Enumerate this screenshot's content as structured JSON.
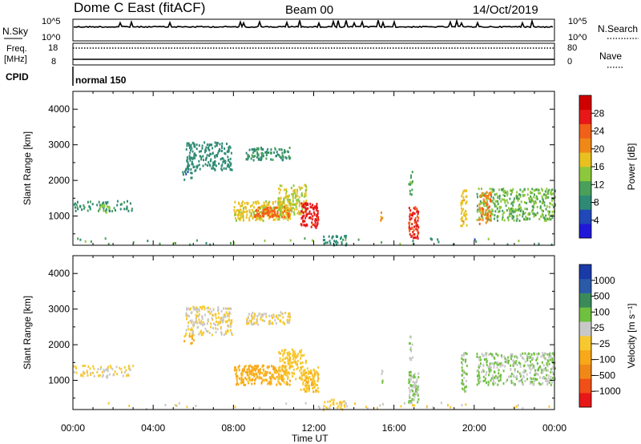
{
  "header": {
    "station": "Dome C East (fitACF)",
    "beam": "Beam 00",
    "date": "14/Oct/2019"
  },
  "panel_labels": {
    "nsky": "N.Sky",
    "nsky_top": "10^5",
    "nsky_bottom": "10^0",
    "nsearch": "N.Search",
    "nsearch_top": "10^5",
    "nsearch_bottom": "10^0",
    "freq": "Freq.",
    "freq_units": "[MHz]",
    "freq_top": "18",
    "freq_bottom": "8",
    "nave": "Nave",
    "nave_top": "80",
    "nave_bottom": "0",
    "cpid": "CPID",
    "cpid_value": "normal 150"
  },
  "chart_data": [
    {
      "type": "heatmap",
      "title": "",
      "xlabel": "Time UT",
      "ylabel": "Slant Range [km]",
      "xticks": [
        "00:00",
        "04:00",
        "08:00",
        "12:00",
        "16:00",
        "20:00",
        "00:00"
      ],
      "yticks": [
        1000,
        2000,
        3000,
        4000
      ],
      "ylim": [
        180,
        4500
      ],
      "xlim_hours": [
        0,
        24
      ],
      "colorbar": {
        "label": "Power [dB]",
        "ticks": [
          "4",
          "8",
          "12",
          "16",
          "20",
          "24",
          "28"
        ],
        "range": [
          0,
          32
        ],
        "colors": [
          "#2018d8",
          "#2048b8",
          "#2e8a74",
          "#4aa05a",
          "#8cc83c",
          "#e8c020",
          "#f08818",
          "#f06018",
          "#e81818",
          "#d00000"
        ]
      },
      "clusters": [
        {
          "t": [
            0.0,
            3.0
          ],
          "r": [
            1150,
            1450
          ],
          "val": 9,
          "density": 0.35
        },
        {
          "t": [
            1.3,
            1.8
          ],
          "r": [
            1100,
            1350
          ],
          "val": 14,
          "density": 0.6
        },
        {
          "t": [
            5.6,
            7.9
          ],
          "r": [
            2300,
            3100
          ],
          "val": 8,
          "density": 0.55
        },
        {
          "t": [
            5.4,
            6.0
          ],
          "r": [
            2050,
            2350
          ],
          "val": 7,
          "density": 0.4
        },
        {
          "t": [
            8.6,
            10.8
          ],
          "r": [
            2600,
            2950
          ],
          "val": 9,
          "density": 0.65
        },
        {
          "t": [
            8.0,
            10.8
          ],
          "r": [
            900,
            1450
          ],
          "val": 17,
          "density": 0.8
        },
        {
          "t": [
            9.0,
            10.8
          ],
          "r": [
            1000,
            1300
          ],
          "val": 24,
          "density": 0.8
        },
        {
          "t": [
            10.2,
            11.6
          ],
          "r": [
            1050,
            1900
          ],
          "val": 16,
          "density": 0.6
        },
        {
          "t": [
            11.3,
            12.2
          ],
          "r": [
            700,
            1400
          ],
          "val": 27,
          "density": 0.85
        },
        {
          "t": [
            12.4,
            13.6
          ],
          "r": [
            200,
            500
          ],
          "val": 8,
          "density": 0.5
        },
        {
          "t": [
            15.3,
            15.4
          ],
          "r": [
            900,
            1300
          ],
          "val": 20,
          "density": 0.7
        },
        {
          "t": [
            16.7,
            17.2
          ],
          "r": [
            400,
            1300
          ],
          "val": 26,
          "density": 0.85
        },
        {
          "t": [
            16.7,
            16.9
          ],
          "r": [
            1600,
            2300
          ],
          "val": 12,
          "density": 0.5
        },
        {
          "t": [
            19.3,
            19.6
          ],
          "r": [
            700,
            1800
          ],
          "val": 18,
          "density": 0.7
        },
        {
          "t": [
            20.1,
            24.0
          ],
          "r": [
            900,
            1800
          ],
          "val": 13,
          "density": 0.55
        },
        {
          "t": [
            20.2,
            20.8
          ],
          "r": [
            800,
            1700
          ],
          "val": 22,
          "density": 0.6
        }
      ]
    },
    {
      "type": "heatmap",
      "title": "",
      "xlabel": "Time UT",
      "ylabel": "Slant Range [km]",
      "xticks": [
        "00:00",
        "04:00",
        "08:00",
        "12:00",
        "16:00",
        "20:00",
        "00:00"
      ],
      "yticks": [
        1000,
        2000,
        3000,
        4000
      ],
      "ylim": [
        180,
        4500
      ],
      "xlim_hours": [
        0,
        24
      ],
      "colorbar": {
        "label": "Velocity [m s⁻¹]",
        "ticks": [
          "−1000",
          "−500",
          "−100",
          "−25",
          "25",
          "100",
          "500",
          "1000"
        ],
        "range": [
          -1200,
          1200
        ],
        "colors": [
          "#e81818",
          "#f05018",
          "#f08818",
          "#f8a818",
          "#f8c830",
          "#c8c8c8",
          "#70c040",
          "#3a8a5a",
          "#2a5aa8",
          "#1a3aa8"
        ]
      },
      "clusters": [
        {
          "t": [
            0.0,
            3.0
          ],
          "r": [
            1150,
            1450
          ],
          "val": -60,
          "density": 0.35
        },
        {
          "t": [
            1.3,
            1.8
          ],
          "r": [
            1100,
            1350
          ],
          "val": 60,
          "density": 0.6
        },
        {
          "t": [
            5.6,
            7.9
          ],
          "r": [
            2300,
            3100
          ],
          "val": 0,
          "density": 0.55
        },
        {
          "t": [
            5.4,
            6.0
          ],
          "r": [
            2050,
            2350
          ],
          "val": -200,
          "density": 0.4
        },
        {
          "t": [
            8.6,
            10.8
          ],
          "r": [
            2600,
            2950
          ],
          "val": 0,
          "density": 0.65
        },
        {
          "t": [
            8.0,
            10.8
          ],
          "r": [
            900,
            1450
          ],
          "val": -300,
          "density": 0.8
        },
        {
          "t": [
            10.2,
            11.6
          ],
          "r": [
            1050,
            1900
          ],
          "val": -150,
          "density": 0.6
        },
        {
          "t": [
            11.3,
            12.2
          ],
          "r": [
            700,
            1400
          ],
          "val": -200,
          "density": 0.85
        },
        {
          "t": [
            12.4,
            13.6
          ],
          "r": [
            200,
            500
          ],
          "val": -80,
          "density": 0.5
        },
        {
          "t": [
            15.3,
            15.4
          ],
          "r": [
            900,
            1300
          ],
          "val": 150,
          "density": 0.7
        },
        {
          "t": [
            16.7,
            17.2
          ],
          "r": [
            400,
            1300
          ],
          "val": 250,
          "density": 0.85
        },
        {
          "t": [
            16.7,
            16.9
          ],
          "r": [
            1600,
            2300
          ],
          "val": 200,
          "density": 0.5
        },
        {
          "t": [
            19.3,
            19.6
          ],
          "r": [
            700,
            1800
          ],
          "val": 250,
          "density": 0.7
        },
        {
          "t": [
            20.1,
            24.0
          ],
          "r": [
            900,
            1800
          ],
          "val": 250,
          "density": 0.55
        }
      ]
    }
  ]
}
